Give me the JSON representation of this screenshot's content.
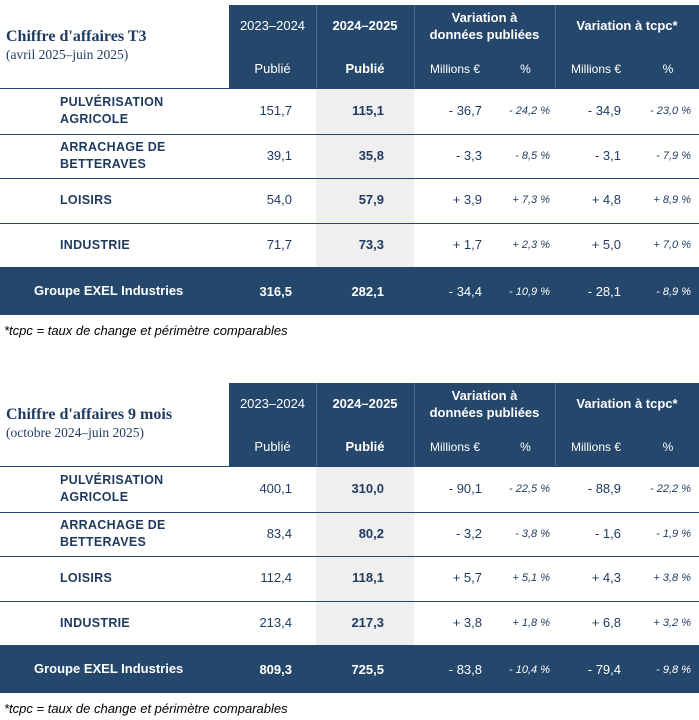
{
  "tables": [
    {
      "title": "Chiffre d'affaires T3",
      "subtitle": "(avril 2025–juin 2025)",
      "headers": {
        "year1": "2023–2024",
        "year2": "2024–2025",
        "var_published": "Variation à\ndonnées publiées",
        "var_tcpc": "Variation à tcpc*",
        "pub1": "Publié",
        "pub2": "Publié",
        "millions1": "Millions €",
        "pct1": "%",
        "millions2": "Millions €",
        "pct2": "%"
      },
      "rows": [
        {
          "label": "PULVÉRISATION\nAGRICOLE",
          "y1": "151,7",
          "y2": "115,1",
          "vm": "- 36,7",
          "vp": "- 24,2 %",
          "tm": "- 34,9",
          "tp": "- 23,0 %"
        },
        {
          "label": "ARRACHAGE DE\nBETTERAVES",
          "y1": "39,1",
          "y2": "35,8",
          "vm": "- 3,3",
          "vp": "- 8,5 %",
          "tm": "- 3,1",
          "tp": "- 7,9 %"
        },
        {
          "label": "LOISIRS",
          "y1": "54,0",
          "y2": "57,9",
          "vm": "+ 3,9",
          "vp": "+ 7,3 %",
          "tm": "+ 4,8",
          "tp": "+ 8,9 %"
        },
        {
          "label": "INDUSTRIE",
          "y1": "71,7",
          "y2": "73,3",
          "vm": "+ 1,7",
          "vp": "+ 2,3 %",
          "tm": "+ 5,0",
          "tp": "+ 7,0 %"
        }
      ],
      "total": {
        "label": "Groupe EXEL Industries",
        "y1": "316,5",
        "y2": "282,1",
        "vm": "- 34,4",
        "vp": "- 10,9 %",
        "tm": "- 28,1",
        "tp": "- 8,9 %"
      },
      "footnote": "*tcpc = taux de change et périmètre comparables"
    },
    {
      "title": "Chiffre d'affaires 9 mois",
      "subtitle": "(octobre 2024–juin 2025)",
      "headers": {
        "year1": "2023–2024",
        "year2": "2024–2025",
        "var_published": "Variation à\ndonnées publiées",
        "var_tcpc": "Variation à tcpc*",
        "pub1": "Publié",
        "pub2": "Publié",
        "millions1": "Millions €",
        "pct1": "%",
        "millions2": "Millions €",
        "pct2": "%"
      },
      "rows": [
        {
          "label": "PULVÉRISATION\nAGRICOLE",
          "y1": "400,1",
          "y2": "310,0",
          "vm": "- 90,1",
          "vp": "- 22,5 %",
          "tm": "- 88,9",
          "tp": "- 22,2 %"
        },
        {
          "label": "ARRACHAGE DE\nBETTERAVES",
          "y1": "83,4",
          "y2": "80,2",
          "vm": "- 3,2",
          "vp": "- 3,8 %",
          "tm": "- 1,6",
          "tp": "- 1,9 %"
        },
        {
          "label": "LOISIRS",
          "y1": "112,4",
          "y2": "118,1",
          "vm": "+ 5,7",
          "vp": "+ 5,1 %",
          "tm": "+ 4,3",
          "tp": "+ 3,8 %"
        },
        {
          "label": "INDUSTRIE",
          "y1": "213,4",
          "y2": "217,3",
          "vm": "+ 3,8",
          "vp": "+ 1,8 %",
          "tm": "+ 6,8",
          "tp": "+ 3,2 %"
        }
      ],
      "total": {
        "label": "Groupe EXEL Industries",
        "y1": "809,3",
        "y2": "725,5",
        "vm": "- 83,8",
        "vp": "- 10,4 %",
        "tm": "- 79,4",
        "tp": "- 9,8 %"
      },
      "footnote": "*tcpc = taux de change et périmètre comparables"
    }
  ]
}
